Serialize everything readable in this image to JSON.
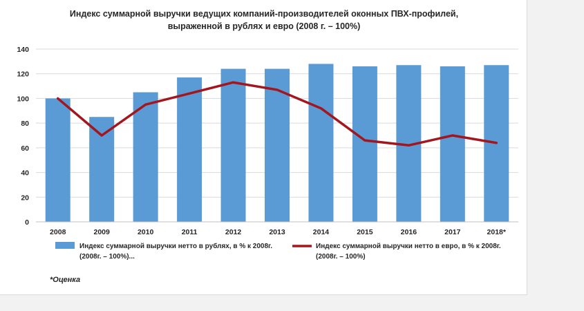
{
  "chart_data": {
    "type": "bar",
    "title_lines": [
      "Индекс суммарной выручки ведущих компаний-производителей оконных ПВХ-профилей,",
      "выраженной в рублях и евро (2008 г. – 100%)"
    ],
    "categories": [
      "2008",
      "2009",
      "2010",
      "2011",
      "2012",
      "2013",
      "2014",
      "2015",
      "2016",
      "2017",
      "2018*"
    ],
    "ylim": [
      0,
      140
    ],
    "yticks": [
      0,
      20,
      40,
      60,
      80,
      100,
      120,
      140
    ],
    "grid": true,
    "legend_position": "bottom",
    "series": [
      {
        "name": "Индекс суммарной выручки нетто в рублях, в % к 2008г. (2008г. – 100%)...",
        "name_lines": [
          "Индекс суммарной выручки нетто в рублях, в % к 2008г.",
          "(2008г. – 100%)..."
        ],
        "type": "bar",
        "color": "#5b9bd5",
        "values": [
          100,
          85,
          105,
          117,
          124,
          124,
          128,
          126,
          127,
          126,
          127
        ]
      },
      {
        "name": "Индекс суммарной выручки нетто в евро, в % к 2008г. (2008г. – 100%)",
        "name_lines": [
          "Индекс суммарной выручки нетто в евро, в % к 2008г.",
          "(2008г. – 100%)"
        ],
        "type": "line",
        "color": "#a3161d",
        "values": [
          100,
          70,
          95,
          104,
          113,
          107,
          92,
          66,
          62,
          70,
          64
        ]
      }
    ],
    "footnote": "*Оценка"
  }
}
